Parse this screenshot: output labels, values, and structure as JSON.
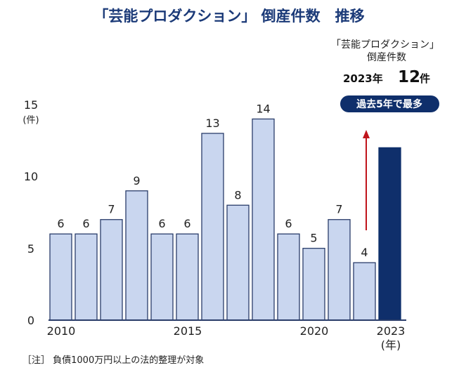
{
  "chart_data": {
    "type": "bar",
    "title": "「芸能プロダクション」 倒産件数　推移",
    "ylabel": "(件)",
    "xlabel": "(年)",
    "ylim": [
      0,
      15
    ],
    "yticks": [
      "0",
      "5",
      "10",
      "15"
    ],
    "xtick_labels": [
      "2010",
      "2015",
      "2020",
      "2023"
    ],
    "categories": [
      "2010",
      "2011",
      "2012",
      "2013",
      "2014",
      "2015",
      "2016",
      "2017",
      "2018",
      "2019",
      "2020",
      "2021",
      "2022",
      "2023"
    ],
    "values": [
      6,
      6,
      7,
      9,
      6,
      6,
      13,
      8,
      14,
      6,
      5,
      7,
      4,
      12
    ],
    "data_labels": [
      "6",
      "6",
      "7",
      "9",
      "6",
      "6",
      "13",
      "8",
      "14",
      "6",
      "5",
      "7",
      "4",
      ""
    ],
    "grid": false,
    "colors": {
      "bar": "#c9d6ef",
      "bar_border": "#2a3d6a",
      "highlight": "#0f2f6b",
      "arrow": "#c0141b",
      "title": "#1b3a78"
    },
    "callout": {
      "line1": "「芸能プロダクション」",
      "line2": "倒産件数",
      "year": "2023年",
      "value": "12",
      "unit": "件",
      "badge": "過去5年で最多"
    },
    "note": "［注］ 負債1000万円以上の法的整理が対象"
  }
}
